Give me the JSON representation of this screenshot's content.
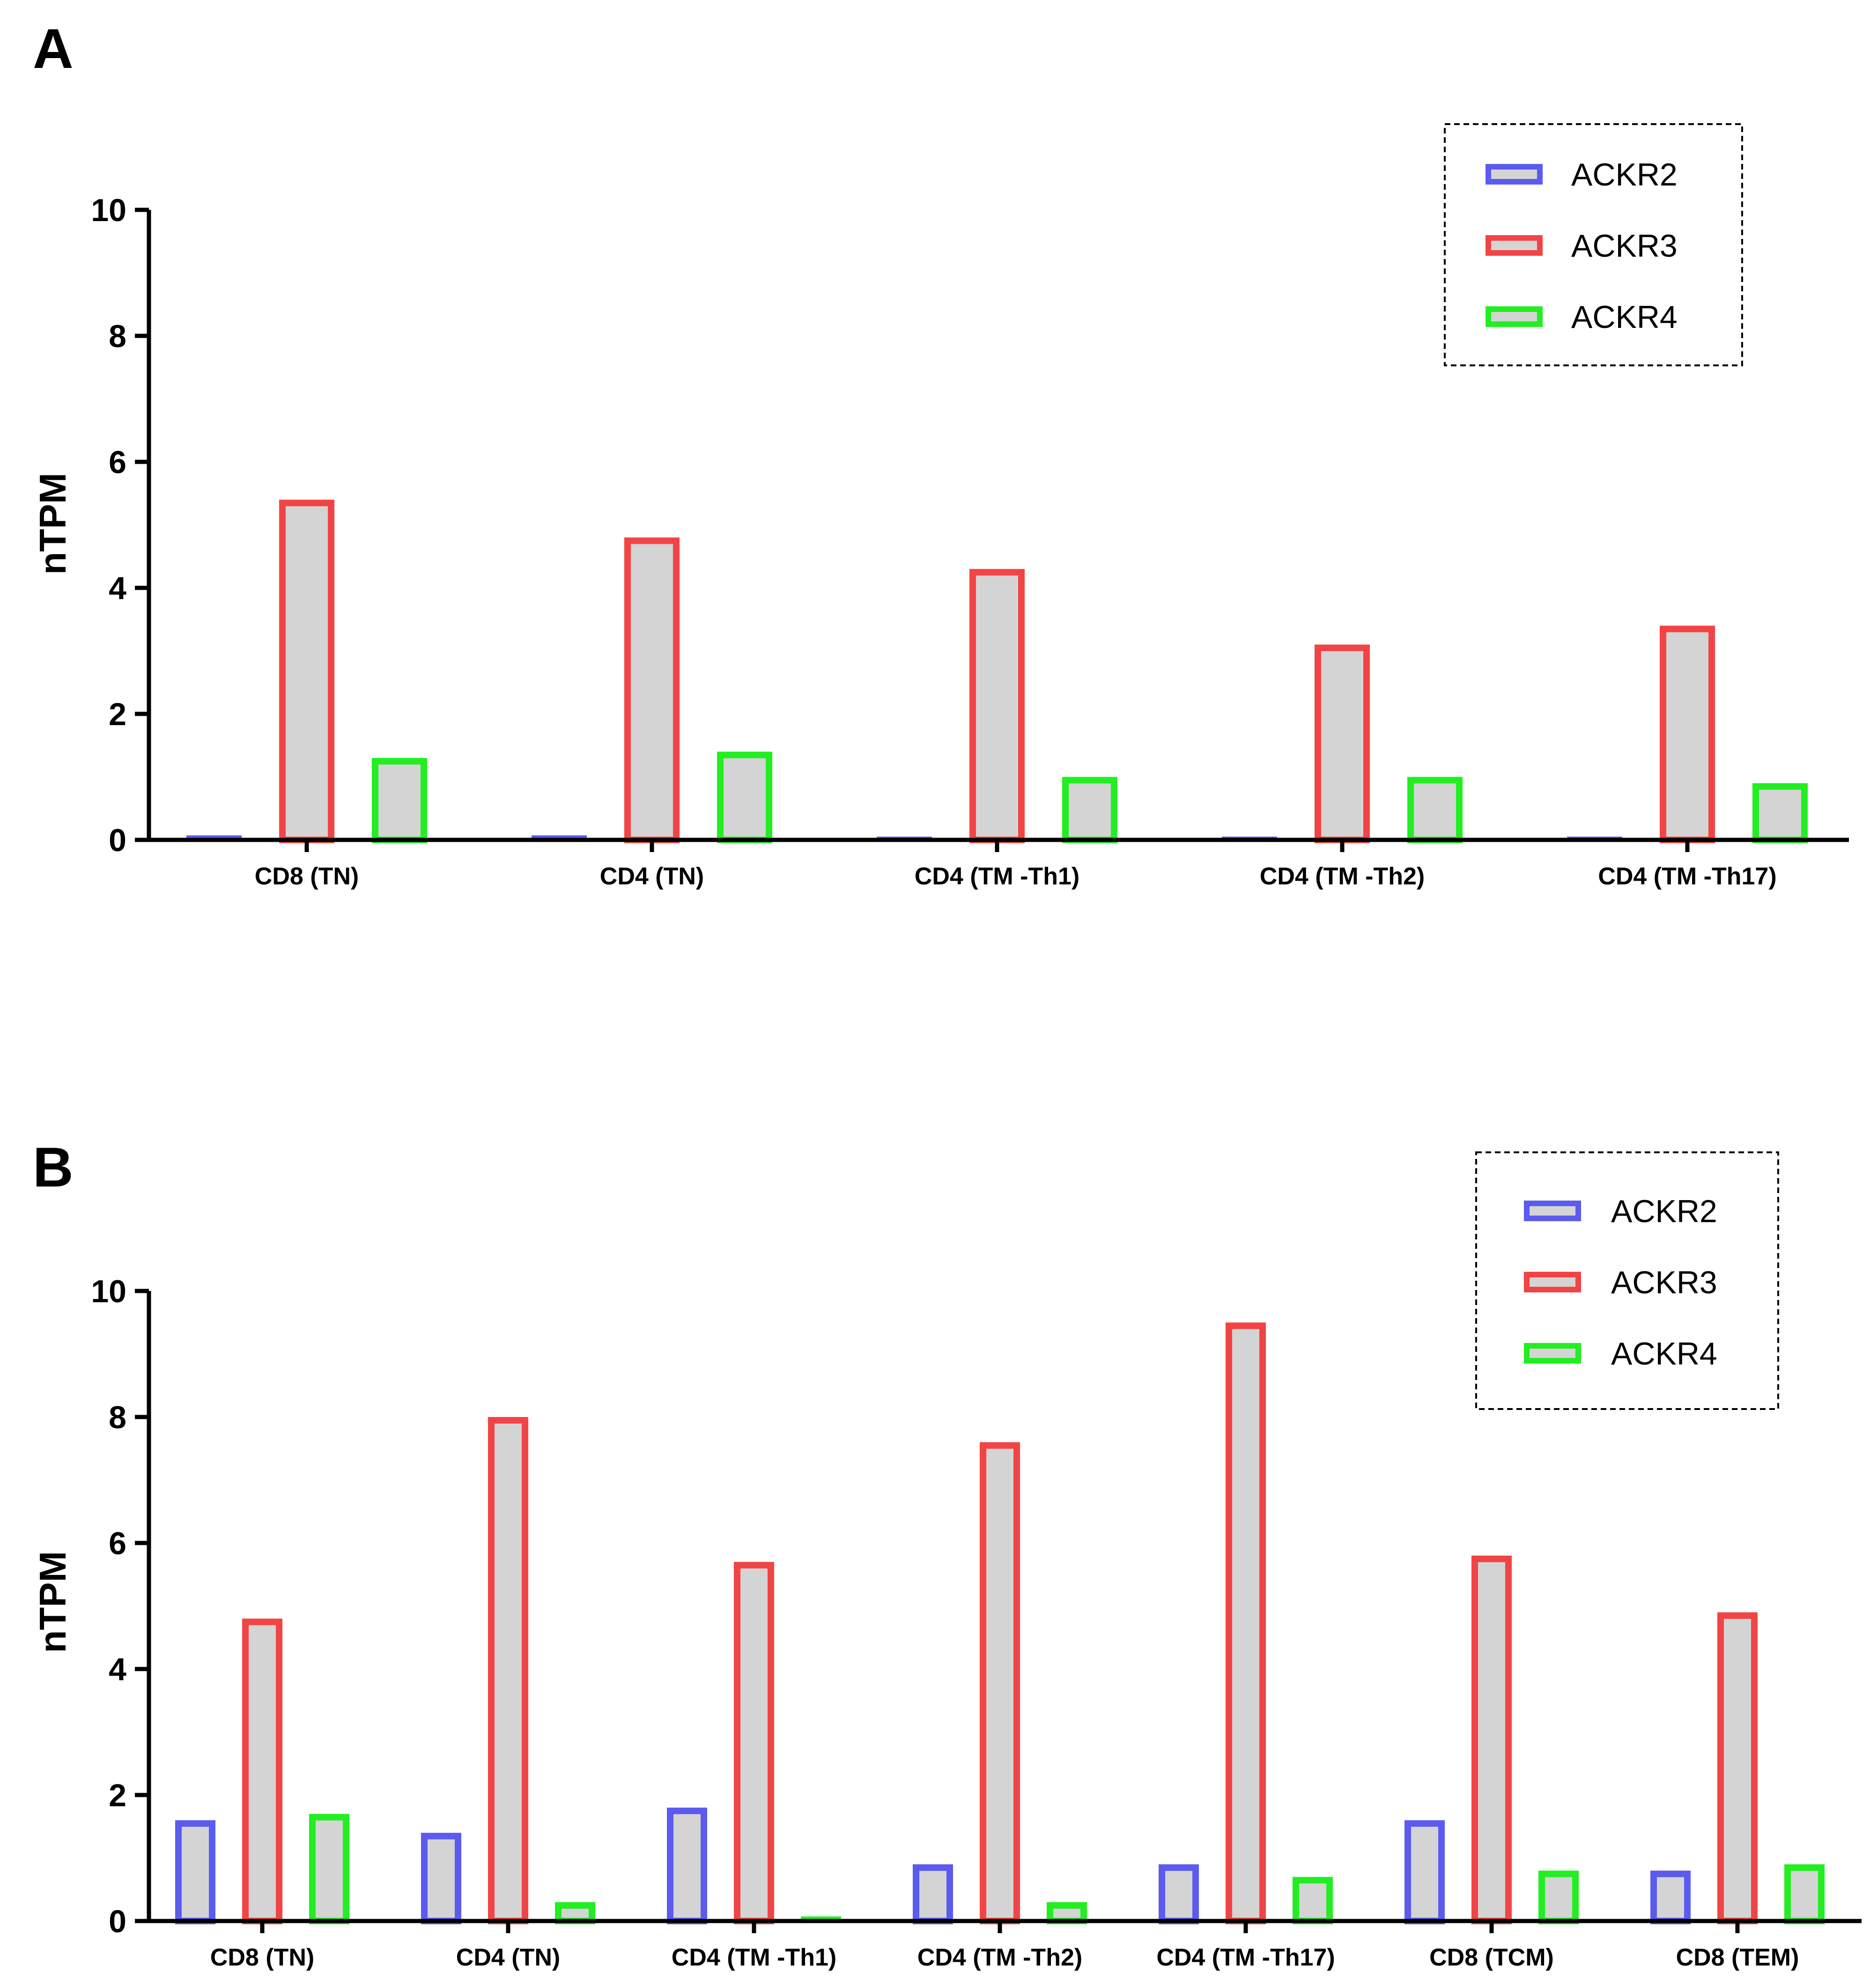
{
  "colors": {
    "ACKR2": "#5b5bf0",
    "ACKR3": "#f24444",
    "ACKR4": "#22ee22",
    "bar_fill": "#d4d4d4",
    "axis": "#000000"
  },
  "chart_data": [
    {
      "type": "bar",
      "panel": "A",
      "ylabel": "nTPM",
      "xlabel": "",
      "ylim": [
        0,
        10
      ],
      "yticks": [
        "0",
        "2",
        "4",
        "6",
        "8",
        "10"
      ],
      "categories": [
        "CD8 (TN)",
        "CD4 (TN)",
        "CD4 (TM -Th1)",
        "CD4 (TM -Th2)",
        "CD4 (TM -Th17)"
      ],
      "series": [
        {
          "name": "ACKR2",
          "values": [
            0.05,
            0.05,
            0,
            0,
            0
          ]
        },
        {
          "name": "ACKR3",
          "values": [
            5.4,
            4.8,
            4.3,
            3.1,
            3.4
          ]
        },
        {
          "name": "ACKR4",
          "values": [
            1.3,
            1.4,
            1.0,
            1.0,
            0.9
          ]
        }
      ],
      "legend": [
        "ACKR2",
        "ACKR3",
        "ACKR4"
      ],
      "legend_position": "top-right",
      "grid": false
    },
    {
      "type": "bar",
      "panel": "B",
      "ylabel": "nTPM",
      "xlabel": "",
      "ylim": [
        0,
        10
      ],
      "yticks": [
        "0",
        "2",
        "4",
        "6",
        "8",
        "10"
      ],
      "categories": [
        "CD8 (TN)",
        "CD4 (TN)",
        "CD4 (TM -Th1)",
        "CD4 (TM -Th2)",
        "CD4 (TM -Th17)",
        "CD8 (TCM)",
        "CD8 (TEM)"
      ],
      "series": [
        {
          "name": "ACKR2",
          "values": [
            1.6,
            1.4,
            1.8,
            0.9,
            0.9,
            1.6,
            0.8
          ]
        },
        {
          "name": "ACKR3",
          "values": [
            4.8,
            8.0,
            5.7,
            7.6,
            9.5,
            5.8,
            4.9
          ]
        },
        {
          "name": "ACKR4",
          "values": [
            1.7,
            0.3,
            0.05,
            0.3,
            0.7,
            0.8,
            0.9
          ]
        }
      ],
      "legend": [
        "ACKR2",
        "ACKR3",
        "ACKR4"
      ],
      "legend_position": "top-right",
      "grid": false
    }
  ]
}
